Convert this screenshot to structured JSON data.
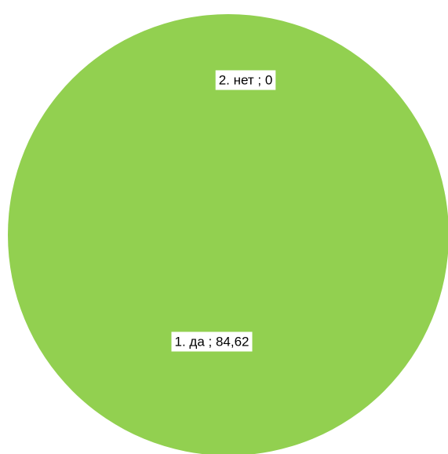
{
  "chart_data": {
    "type": "pie",
    "categories": [
      "1. да",
      "2. нет"
    ],
    "values": [
      84.62,
      0
    ],
    "data_labels": [
      "1. да ; 84,62",
      "2. нет ; 0"
    ],
    "colors": [
      "#92d050",
      "#92d050"
    ],
    "legend": "none"
  }
}
